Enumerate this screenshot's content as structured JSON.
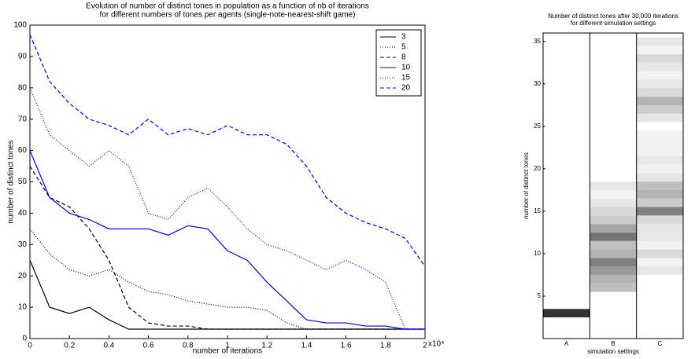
{
  "chart_data": [
    {
      "type": "line",
      "title": [
        "Evolution of number of distinct tones in population as a function of nb of iterations",
        "for different numbers of tones per agents (single-note-nearest-shift game)"
      ],
      "x_label": "number of iterations",
      "y_label": "number of distinct tones",
      "x": [
        0,
        1000,
        2000,
        3000,
        4000,
        5000,
        6000,
        7000,
        8000,
        9000,
        10000,
        11000,
        12000,
        13000,
        14000,
        15000,
        16000,
        17000,
        18000,
        19000,
        20000
      ],
      "xlim": [
        0,
        20000
      ],
      "xticks": [
        0,
        {
          "value": 2000,
          "label": "0.2"
        },
        {
          "value": 4000,
          "label": "0.4"
        },
        {
          "value": 6000,
          "label": "0.6"
        },
        {
          "value": 8000,
          "label": "0.8"
        },
        {
          "value": 10000,
          "label": "1"
        },
        {
          "value": 12000,
          "label": "1.2"
        },
        {
          "value": 14000,
          "label": "1.4"
        },
        {
          "value": 16000,
          "label": "1.6"
        },
        {
          "value": 18000,
          "label": "1.8"
        },
        {
          "value": 20000,
          "label": "2"
        }
      ],
      "xtick_multiplier": "x10⁴",
      "ylim": [
        0,
        100
      ],
      "yticks": [
        0,
        10,
        20,
        30,
        40,
        50,
        60,
        70,
        80,
        90,
        100
      ],
      "legend": "upper right",
      "series": [
        {
          "name": "3",
          "color": "#000000",
          "linestyle": "solid",
          "values": [
            25,
            10,
            8,
            10,
            6,
            3,
            3,
            3,
            3,
            3,
            3,
            3,
            3,
            3,
            3,
            3,
            3,
            3,
            3,
            3,
            3
          ]
        },
        {
          "name": "5",
          "color": "#000000",
          "linestyle": "dotted",
          "values": [
            35,
            27,
            22,
            20,
            22,
            18,
            15,
            14,
            12,
            11,
            10,
            10,
            9,
            5,
            3,
            3,
            3,
            3,
            3,
            3,
            3
          ]
        },
        {
          "name": "8",
          "color": "#000000",
          "linestyle": "dashed",
          "values": [
            55,
            45,
            42,
            35,
            25,
            10,
            5,
            4,
            4,
            3,
            3,
            3,
            3,
            3,
            3,
            3,
            3,
            3,
            3,
            3,
            3
          ]
        },
        {
          "name": "10",
          "color": "#0000ff",
          "linestyle": "solid",
          "values": [
            60,
            45,
            40,
            38,
            35,
            35,
            35,
            33,
            36,
            35,
            28,
            25,
            18,
            12,
            6,
            5,
            5,
            4,
            4,
            3,
            3
          ]
        },
        {
          "name": "15",
          "color": "#0000ff",
          "linestyle": "dotted",
          "values": [
            80,
            65,
            60,
            55,
            60,
            55,
            40,
            38,
            45,
            48,
            42,
            35,
            30,
            28,
            25,
            22,
            25,
            22,
            18,
            3,
            3
          ]
        },
        {
          "name": "20",
          "color": "#0000ff",
          "linestyle": "dashed",
          "values": [
            97,
            82,
            75,
            70,
            68,
            65,
            70,
            65,
            67,
            65,
            68,
            65,
            65,
            62,
            55,
            45,
            40,
            37,
            35,
            32,
            23
          ]
        }
      ]
    },
    {
      "type": "heatmap",
      "title": [
        "Number of distinct tones after 30,000 iterations",
        "for different simulation settings"
      ],
      "x_label": "simulation settings",
      "y_label": "number of distinct tones",
      "columns": [
        "A",
        "B",
        "C"
      ],
      "rows": [
        1,
        2,
        3,
        4,
        5,
        6,
        7,
        8,
        9,
        10,
        11,
        12,
        13,
        14,
        15,
        16,
        17,
        18,
        19,
        20,
        21,
        22,
        23,
        24,
        25,
        26,
        27,
        28,
        29,
        30,
        31,
        32,
        33,
        34,
        35,
        36
      ],
      "ylim": [
        0,
        36
      ],
      "yticks": [
        5,
        10,
        15,
        20,
        25,
        30,
        35
      ],
      "z": [
        [
          0,
          0,
          0.8,
          0,
          0,
          0,
          0,
          0,
          0,
          0,
          0,
          0,
          0,
          0,
          0,
          0,
          0,
          0,
          0,
          0,
          0,
          0,
          0,
          0,
          0,
          0,
          0,
          0,
          0,
          0,
          0,
          0,
          0,
          0,
          0,
          0
        ],
        [
          0,
          0,
          0,
          0,
          0,
          0.25,
          0.3,
          0.4,
          0.5,
          0.3,
          0.25,
          0.55,
          0.35,
          0.2,
          0.15,
          0.1,
          0.05,
          0.1,
          0,
          0,
          0,
          0,
          0,
          0,
          0,
          0,
          0,
          0,
          0,
          0,
          0,
          0,
          0,
          0,
          0,
          0
        ],
        [
          0,
          0,
          0,
          0,
          0,
          0,
          0,
          0.1,
          0.05,
          0.15,
          0.05,
          0.1,
          0.1,
          0.15,
          0.5,
          0.2,
          0.3,
          0.25,
          0.1,
          0.05,
          0.1,
          0.05,
          0.05,
          0.05,
          0,
          0.1,
          0.2,
          0.3,
          0.15,
          0.1,
          0.05,
          0.1,
          0.15,
          0.05,
          0.1,
          0
        ]
      ]
    }
  ]
}
